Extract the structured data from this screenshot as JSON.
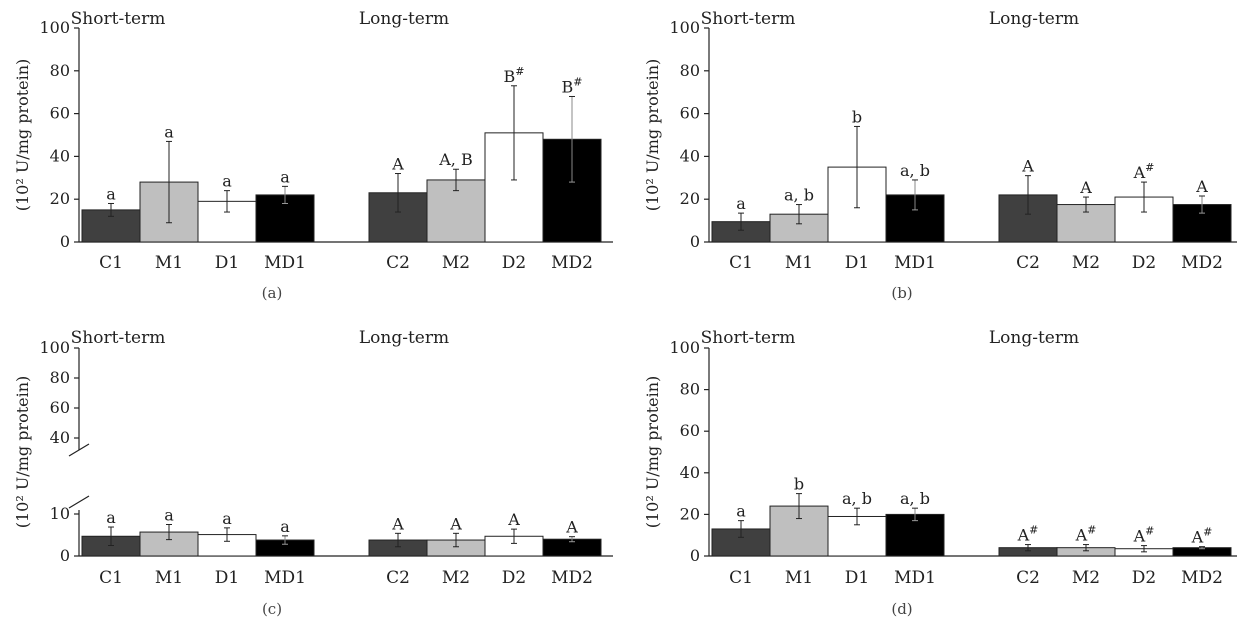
{
  "chart_data": [
    {
      "panel": "(a)",
      "type": "bar",
      "ylabel": "(10² U/mg protein)",
      "ylim": [
        0,
        100
      ],
      "yticks": [
        0,
        20,
        40,
        60,
        80,
        100
      ],
      "groups": [
        {
          "title": "Short-term",
          "categories": [
            "C1",
            "M1",
            "D1",
            "MD1"
          ],
          "values": [
            15,
            28,
            19,
            22
          ],
          "errors": [
            3,
            19,
            5,
            4
          ],
          "labels": [
            "a",
            "a",
            "a",
            "a"
          ]
        },
        {
          "title": "Long-term",
          "categories": [
            "C2",
            "M2",
            "D2",
            "MD2"
          ],
          "values": [
            23,
            29,
            51,
            48
          ],
          "errors": [
            9,
            5,
            22,
            20
          ],
          "labels": [
            "A",
            "A, B",
            "B#",
            "B#"
          ]
        }
      ]
    },
    {
      "panel": "(b)",
      "type": "bar",
      "ylabel": "(10² U/mg protein)",
      "ylim": [
        0,
        100
      ],
      "yticks": [
        0,
        20,
        40,
        60,
        80,
        100
      ],
      "groups": [
        {
          "title": "Short-term",
          "categories": [
            "C1",
            "M1",
            "D1",
            "MD1"
          ],
          "values": [
            9.5,
            13,
            35,
            22
          ],
          "errors": [
            4,
            4.5,
            19,
            7
          ],
          "labels": [
            "a",
            "a, b",
            "b",
            "a, b"
          ]
        },
        {
          "title": "Long-term",
          "categories": [
            "C2",
            "M2",
            "D2",
            "MD2"
          ],
          "values": [
            22,
            17.5,
            21,
            17.5
          ],
          "errors": [
            9,
            3.5,
            7,
            4
          ],
          "labels": [
            "A",
            "A",
            "A#",
            "A"
          ]
        }
      ]
    },
    {
      "panel": "(c)",
      "type": "bar",
      "ylabel": "(10² U/mg protein)",
      "ylim": [
        0,
        100
      ],
      "axis_break": [
        10,
        40
      ],
      "yticks": [
        0,
        10,
        40,
        60,
        80,
        100
      ],
      "groups": [
        {
          "title": "Short-term",
          "categories": [
            "C1",
            "M1",
            "D1",
            "MD1"
          ],
          "values": [
            4.7,
            5.7,
            5.1,
            3.8
          ],
          "errors": [
            2.2,
            1.8,
            1.6,
            1.0
          ],
          "labels": [
            "a",
            "a",
            "a",
            "a"
          ]
        },
        {
          "title": "Long-term",
          "categories": [
            "C2",
            "M2",
            "D2",
            "MD2"
          ],
          "values": [
            3.8,
            3.8,
            4.7,
            4.0
          ],
          "errors": [
            1.6,
            1.6,
            1.7,
            0.6
          ],
          "labels": [
            "A",
            "A",
            "A",
            "A"
          ]
        }
      ]
    },
    {
      "panel": "(d)",
      "type": "bar",
      "ylabel": "(10² U/mg protein)",
      "ylim": [
        0,
        100
      ],
      "yticks": [
        0,
        20,
        40,
        60,
        80,
        100
      ],
      "groups": [
        {
          "title": "Short-term",
          "categories": [
            "C1",
            "M1",
            "D1",
            "MD1"
          ],
          "values": [
            13,
            24,
            19,
            20
          ],
          "errors": [
            4,
            6,
            4,
            3
          ],
          "labels": [
            "a",
            "b",
            "a, b",
            "a, b"
          ]
        },
        {
          "title": "Long-term",
          "categories": [
            "C2",
            "M2",
            "D2",
            "MD2"
          ],
          "values": [
            4,
            4,
            3.5,
            4
          ],
          "errors": [
            1.5,
            1.5,
            1.5,
            0.5
          ],
          "labels": [
            "A#",
            "A#",
            "A#",
            "A#"
          ]
        }
      ]
    }
  ],
  "bar_colors": [
    "#404040",
    "#bfbfbf",
    "#ffffff",
    "#000000"
  ]
}
